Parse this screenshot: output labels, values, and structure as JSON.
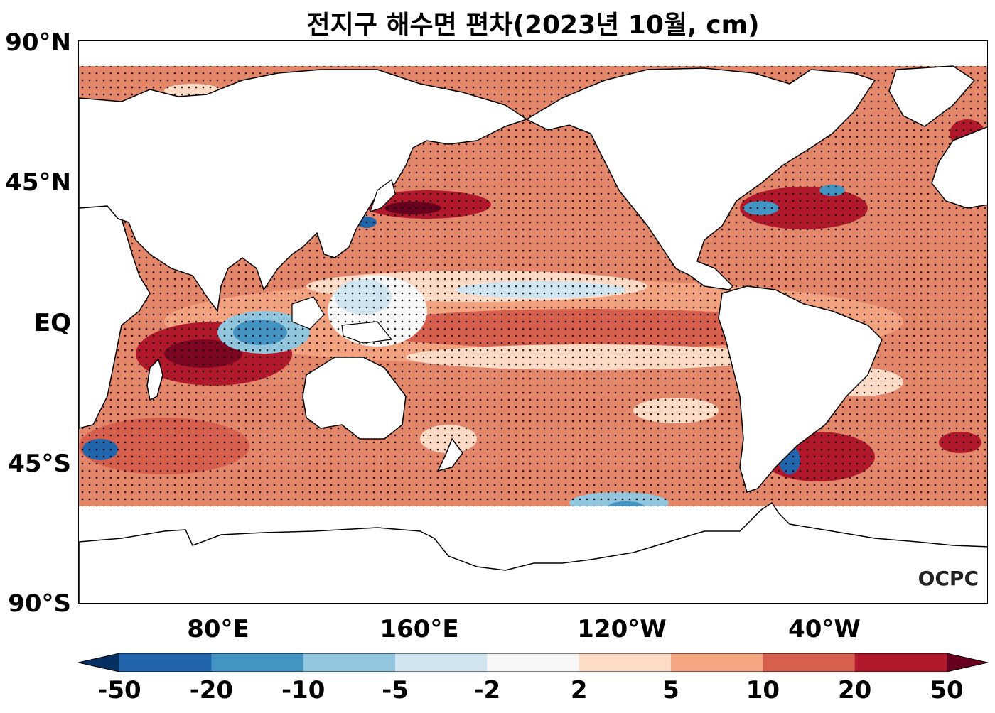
{
  "title": "전지구 해수면 편차(2023년 10월, cm)",
  "axes": {
    "lat_labels": [
      "90°N",
      "45°N",
      "EQ",
      "45°S",
      "90°S"
    ],
    "lon_labels": [
      "80°E",
      "160°E",
      "120°W",
      "40°W"
    ]
  },
  "logo_text": "OCPC",
  "colorbar": {
    "tick_labels": [
      "-50",
      "-20",
      "-10",
      "-5",
      "-2",
      "2",
      "5",
      "10",
      "20",
      "50"
    ],
    "colors": [
      "#053061",
      "#2166ac",
      "#4393c3",
      "#92c5de",
      "#d1e5f0",
      "#f7f7f7",
      "#fddbc7",
      "#f4a582",
      "#d6604d",
      "#b2182b",
      "#67001f"
    ]
  }
}
